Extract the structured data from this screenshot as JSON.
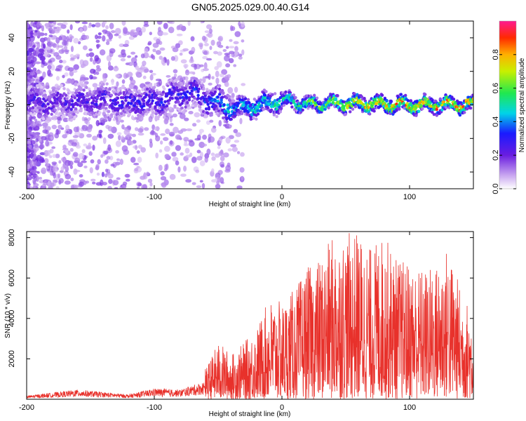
{
  "title": "GN05.2025.029.00.40.G14",
  "chart_data": [
    {
      "type": "heatmap",
      "title": "GN05.2025.029.00.40.G14",
      "xlabel": "Height of straight line (km)",
      "ylabel": "Frequency (Hz)",
      "xlim": [
        -200,
        150
      ],
      "ylim": [
        -50,
        50
      ],
      "xticks": [
        -200,
        -100,
        0,
        100
      ],
      "yticks": [
        -40,
        -20,
        0,
        20,
        40
      ],
      "colorbar": {
        "label": "Normalized spectral amplitude",
        "range": [
          0,
          1
        ],
        "ticks": [
          "0.0",
          "0.2",
          "0.4",
          "0.6",
          "0.8"
        ],
        "tick_values": [
          0.0,
          0.2,
          0.4,
          0.6,
          0.8
        ]
      },
      "ridge": {
        "x": [
          -200,
          -180,
          -160,
          -140,
          -120,
          -100,
          -80,
          -70,
          -60,
          -50,
          -40,
          -20,
          0,
          20,
          50,
          100,
          150
        ],
        "center_frequency_hz": [
          2,
          1,
          2,
          3,
          1,
          2,
          6,
          8,
          3,
          1,
          -2,
          -1,
          3,
          0,
          1,
          0,
          0
        ],
        "peak_amplitude": [
          0.25,
          0.25,
          0.25,
          0.28,
          0.3,
          0.3,
          0.3,
          0.32,
          0.35,
          0.4,
          0.45,
          0.5,
          0.55,
          0.6,
          0.75,
          0.85,
          0.8
        ]
      }
    },
    {
      "type": "line",
      "xlabel": "Height of straight line (km)",
      "ylabel": "SNR (10 * v/v)",
      "xlim": [
        -200,
        150
      ],
      "ylim": [
        0,
        8300
      ],
      "xticks": [
        -200,
        -100,
        0,
        100
      ],
      "yticks": [
        2000,
        4000,
        6000,
        8000
      ],
      "color": "#e8312b",
      "envelope": {
        "x": [
          -200,
          -160,
          -120,
          -100,
          -80,
          -60,
          -50,
          -45,
          -40,
          -30,
          -20,
          -10,
          0,
          10,
          20,
          30,
          40,
          50,
          60,
          70,
          80,
          90,
          100,
          110,
          120,
          130,
          140,
          150
        ],
        "max": [
          300,
          800,
          400,
          900,
          800,
          1500,
          2800,
          2600,
          2200,
          2800,
          3500,
          5000,
          4800,
          5500,
          6500,
          7000,
          8100,
          8200,
          8300,
          7500,
          8200,
          7000,
          6800,
          6500,
          6600,
          7600,
          5500,
          4200
        ]
      }
    }
  ]
}
